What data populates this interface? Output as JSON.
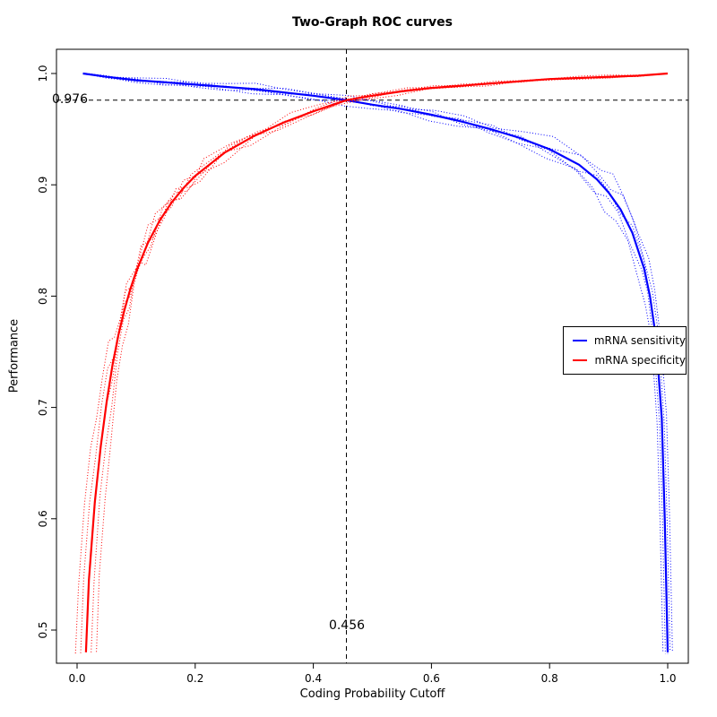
{
  "chart_data": {
    "type": "line",
    "title": "Two-Graph ROC curves",
    "xlabel": "Coding Probability Cutoff",
    "ylabel": "Performance",
    "xlim": [
      -0.04,
      1.04
    ],
    "ylim": [
      0.47,
      1.01
    ],
    "grid": false,
    "legend_position": "inside-right",
    "x_ticks": [
      "0.0",
      "0.2",
      "0.4",
      "0.6",
      "0.8",
      "1.0"
    ],
    "x_tick_values": [
      0,
      0.2,
      0.4,
      0.6,
      0.8,
      1
    ],
    "y_ticks": [
      "0.5",
      "0.6",
      "0.7",
      "0.8",
      "0.9",
      "1.0"
    ],
    "y_tick_values": [
      0.5,
      0.6,
      0.7,
      0.8,
      0.9,
      1
    ],
    "annotations": {
      "hline": {
        "y": 0.976,
        "label": "0.976"
      },
      "vline": {
        "x": 0.456,
        "label": "0.456"
      },
      "crossover": {
        "x": 0.456,
        "y": 0.976
      }
    },
    "folds": {
      "count": 5,
      "bias": [
        -1,
        -0.5,
        0,
        0.5,
        1
      ]
    },
    "series": [
      {
        "name": "mRNA sensitivity",
        "color": "#0000ff",
        "line_style": "solid mean with dotted cross-validation folds",
        "x": [
          0.01,
          0.05,
          0.1,
          0.15,
          0.2,
          0.25,
          0.3,
          0.35,
          0.4,
          0.456,
          0.5,
          0.55,
          0.6,
          0.65,
          0.7,
          0.75,
          0.8,
          0.85,
          0.88,
          0.9,
          0.92,
          0.94,
          0.96,
          0.97,
          0.98,
          0.99,
          0.995,
          1.0
        ],
        "y": [
          1.0,
          0.997,
          0.994,
          0.992,
          0.99,
          0.988,
          0.986,
          0.983,
          0.98,
          0.976,
          0.972,
          0.968,
          0.963,
          0.957,
          0.95,
          0.942,
          0.932,
          0.918,
          0.905,
          0.893,
          0.878,
          0.857,
          0.825,
          0.8,
          0.763,
          0.69,
          0.6,
          0.48
        ],
        "fold_spread": [
          0.001,
          0.003,
          0.004,
          0.005,
          0.005,
          0.005,
          0.005,
          0.005,
          0.005,
          0.005,
          0.006,
          0.007,
          0.008,
          0.009,
          0.01,
          0.011,
          0.012,
          0.014,
          0.016,
          0.017,
          0.018,
          0.018,
          0.016,
          0.014,
          0.012,
          0.01,
          0.006,
          0.003
        ],
        "fold_x_shifts": [
          -0.008,
          -0.004,
          0,
          0.004,
          0.008
        ],
        "fold_shift_weight": "x"
      },
      {
        "name": "mRNA specificity",
        "color": "#ff0000",
        "line_style": "solid mean with dotted cross-validation folds",
        "x": [
          0.015,
          0.02,
          0.03,
          0.04,
          0.05,
          0.06,
          0.07,
          0.08,
          0.09,
          0.1,
          0.12,
          0.14,
          0.16,
          0.18,
          0.2,
          0.25,
          0.3,
          0.35,
          0.4,
          0.456,
          0.5,
          0.55,
          0.6,
          0.65,
          0.7,
          0.75,
          0.8,
          0.85,
          0.9,
          0.95,
          1.0
        ],
        "y": [
          0.48,
          0.545,
          0.615,
          0.665,
          0.705,
          0.738,
          0.765,
          0.787,
          0.806,
          0.822,
          0.848,
          0.868,
          0.884,
          0.897,
          0.908,
          0.929,
          0.944,
          0.956,
          0.966,
          0.976,
          0.98,
          0.984,
          0.987,
          0.989,
          0.991,
          0.993,
          0.995,
          0.996,
          0.997,
          0.998,
          1.0
        ],
        "fold_spread": [
          0.002,
          0.008,
          0.014,
          0.018,
          0.022,
          0.025,
          0.027,
          0.028,
          0.029,
          0.03,
          0.029,
          0.027,
          0.025,
          0.023,
          0.021,
          0.017,
          0.013,
          0.01,
          0.007,
          0.005,
          0.004,
          0.004,
          0.003,
          0.003,
          0.003,
          0.002,
          0.002,
          0.002,
          0.002,
          0.001,
          0.0
        ],
        "fold_x_shifts": [
          -0.018,
          -0.009,
          0,
          0.009,
          0.018
        ],
        "fold_shift_weight": "1-x"
      }
    ]
  }
}
